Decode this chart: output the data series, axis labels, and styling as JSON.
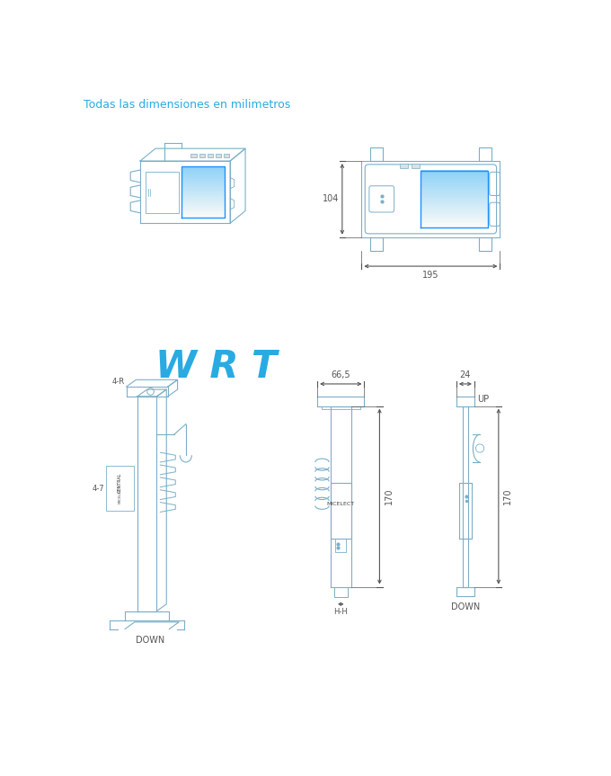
{
  "title_text": "Todas las dimensiones en milimetros",
  "title_color": "#29ABE2",
  "title_fontsize": 9,
  "wrt_label": "W R T",
  "wrt_color": "#29ABE2",
  "wrt_fontsize": 30,
  "bg_color": "#FFFFFF",
  "line_color": "#7BAFC8",
  "dim_color": "#555555",
  "dim_fontsize": 7,
  "label_fontsize": 6,
  "dim_104": "104",
  "dim_195": "195",
  "dim_66_5": "66,5",
  "dim_24": "24",
  "dim_170_mid": "170",
  "dim_170_right": "170",
  "label_up": "UP",
  "label_down_mid": "DOWN",
  "label_down_right": "DOWN",
  "label_micelect": "MICELECT",
  "label_central": "CENTRAL",
  "label_4r": "4-R",
  "label_4_7": "4-7",
  "label_hh": "H-H"
}
